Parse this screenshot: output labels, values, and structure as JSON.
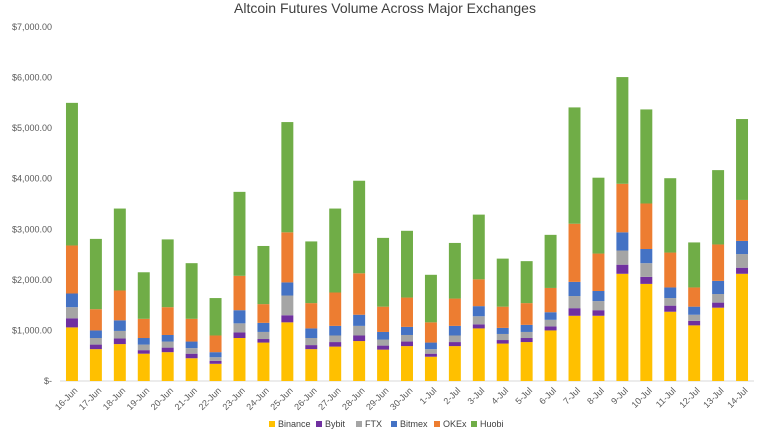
{
  "chart_data": {
    "type": "bar",
    "stacked": true,
    "title": "Altcoin Futures Volume Across Major Exchanges",
    "xlabel": "",
    "ylabel": "",
    "ylim": [
      0,
      7000
    ],
    "y_ticks": [
      0,
      1000,
      2000,
      3000,
      4000,
      5000,
      6000,
      7000
    ],
    "y_tick_labels": [
      "$-",
      "$1,000.00",
      "$2,000.00",
      "$3,000.00",
      "$4,000.00",
      "$5,000.00",
      "$6,000.00",
      "$7,000.00"
    ],
    "grid": false,
    "legend_position": "bottom",
    "categories": [
      "16-Jun",
      "17-Jun",
      "18-Jun",
      "19-Jun",
      "20-Jun",
      "21-Jun",
      "22-Jun",
      "23-Jun",
      "24-Jun",
      "25-Jun",
      "26-Jun",
      "27-Jun",
      "28-Jun",
      "29-Jun",
      "30-Jun",
      "1-Jul",
      "2-Jul",
      "3-Jul",
      "4-Jul",
      "5-Jul",
      "6-Jul",
      "7-Jul",
      "8-Jul",
      "9-Jul",
      "10-Jul",
      "11-Jul",
      "12-Jul",
      "13-Jul",
      "14-Jul"
    ],
    "series": [
      {
        "name": "Binance",
        "color": "#FFC000",
        "values": [
          1060,
          630,
          730,
          540,
          570,
          450,
          340,
          850,
          760,
          1160,
          630,
          680,
          790,
          620,
          690,
          480,
          690,
          1040,
          740,
          770,
          1000,
          1290,
          1290,
          2120,
          1920,
          1370,
          1100,
          1450,
          2120
        ]
      },
      {
        "name": "Bybit",
        "color": "#7030A0",
        "values": [
          180,
          90,
          110,
          70,
          90,
          90,
          60,
          110,
          70,
          140,
          80,
          90,
          110,
          80,
          90,
          60,
          80,
          80,
          70,
          80,
          80,
          150,
          110,
          180,
          140,
          120,
          90,
          100,
          120
        ]
      },
      {
        "name": "FTX",
        "color": "#A5A5A5",
        "values": [
          220,
          130,
          150,
          110,
          120,
          110,
          70,
          180,
          140,
          390,
          140,
          130,
          190,
          120,
          130,
          90,
          130,
          160,
          120,
          120,
          130,
          240,
          180,
          280,
          270,
          150,
          120,
          170,
          270
        ]
      },
      {
        "name": "Bitmex",
        "color": "#4472C4",
        "values": [
          270,
          150,
          210,
          130,
          130,
          130,
          100,
          260,
          180,
          260,
          190,
          190,
          220,
          150,
          160,
          130,
          190,
          200,
          120,
          140,
          150,
          280,
          200,
          360,
          280,
          210,
          160,
          260,
          260
        ]
      },
      {
        "name": "OKEx",
        "color": "#ED7D31",
        "values": [
          950,
          420,
          590,
          380,
          550,
          450,
          330,
          680,
          370,
          990,
          500,
          660,
          820,
          500,
          580,
          400,
          540,
          530,
          420,
          430,
          480,
          1150,
          740,
          960,
          900,
          690,
          380,
          720,
          810
        ]
      },
      {
        "name": "Huobi",
        "color": "#70AD47",
        "values": [
          2820,
          1390,
          1620,
          920,
          1340,
          1100,
          740,
          1660,
          1150,
          2180,
          1220,
          1660,
          1830,
          1360,
          1320,
          940,
          1100,
          1280,
          950,
          830,
          1050,
          2300,
          1500,
          2110,
          1860,
          1470,
          890,
          1470,
          1600
        ]
      }
    ]
  }
}
